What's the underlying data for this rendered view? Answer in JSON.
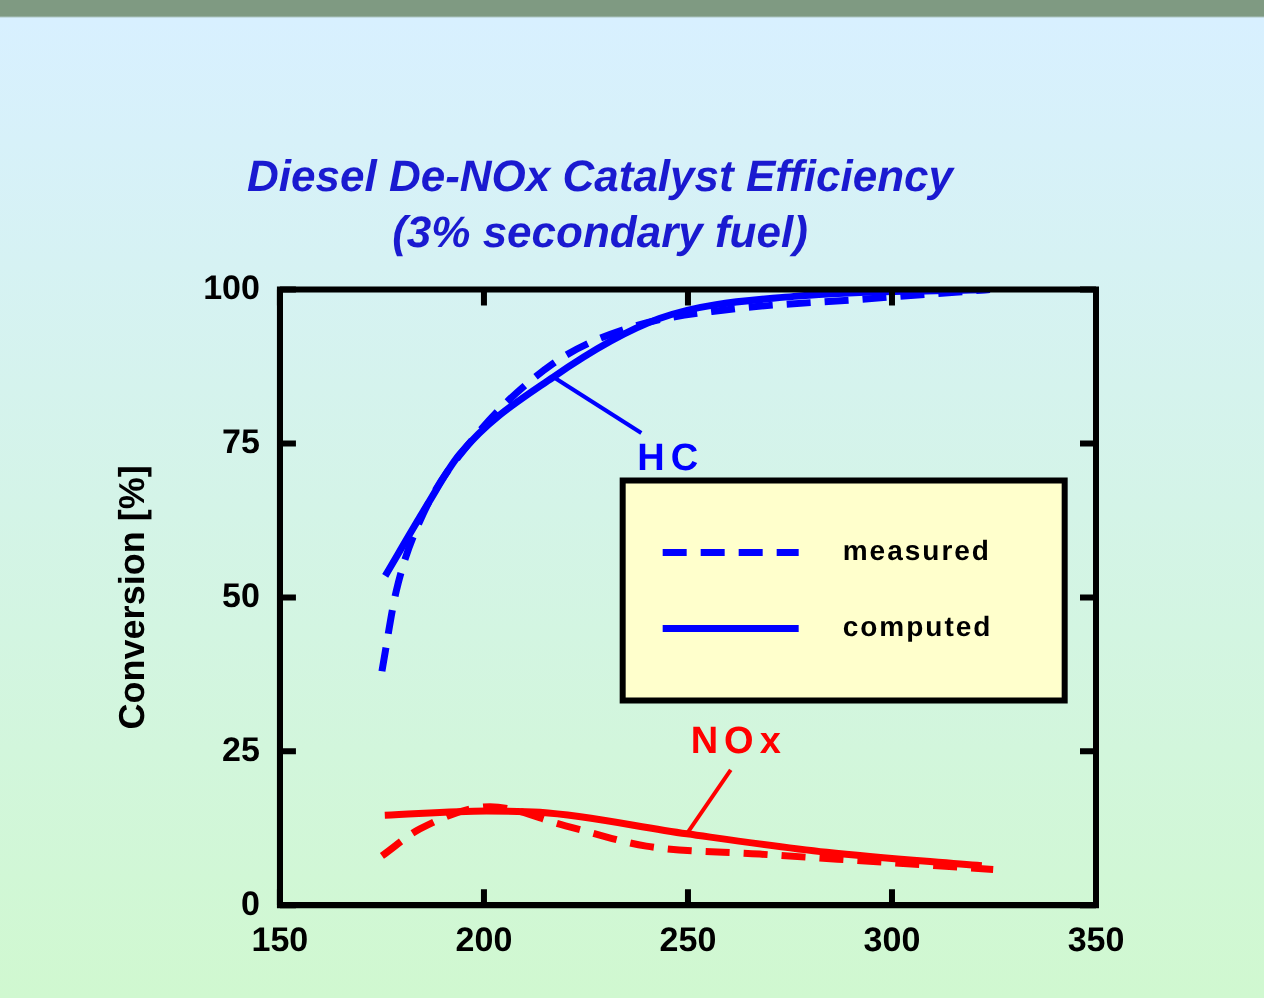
{
  "chart_data": {
    "type": "line",
    "title": "Diesel De-NOx Catalyst Efficiency",
    "subtitle": "(3% secondary fuel)",
    "ylabel": "Conversion [%]",
    "xlim": [
      150,
      350
    ],
    "xticks": [
      150,
      200,
      250,
      300,
      350
    ],
    "ylim": [
      0,
      100
    ],
    "yticks": [
      0,
      25,
      50,
      75,
      100
    ],
    "grid": false,
    "legend": "right",
    "marker": "none",
    "series": [
      {
        "name": "measured",
        "color": "#0000ff",
        "line_style": "dashed",
        "x": [
          175,
          178.5,
          185,
          197,
          217,
          236.6,
          259,
          292,
          324
        ],
        "values": [
          38,
          51,
          63.4,
          75.5,
          88,
          94,
          96.7,
          98.4,
          100
        ]
      },
      {
        "name": "computed",
        "color": "#0000ff",
        "line_style": "solid",
        "x": [
          175.8,
          185.8,
          194,
          217,
          243,
          276,
          324
        ],
        "values": [
          53.5,
          64.7,
          73.2,
          85.8,
          95.3,
          98.9,
          100
        ]
      },
      {
        "color": "#ff0000",
        "line_style": "dashed",
        "x": [
          175,
          184.3,
          201.5,
          220,
          239.8,
          267.6,
          300,
          324.8
        ],
        "values": [
          8,
          12.4,
          16,
          12.9,
          9.6,
          8.3,
          6.9,
          5.8
        ]
      },
      {
        "color": "#ff0000",
        "line_style": "solid",
        "x": [
          175.7,
          200.6,
          213.7,
          249.7,
          284,
          322
        ],
        "values": [
          14.6,
          15.3,
          15.1,
          11.6,
          8.6,
          6.4
        ]
      }
    ],
    "annotations": [
      {
        "text": "HC",
        "x": 217,
        "y": 85.8
      },
      {
        "text": "NOx",
        "x": 249.7,
        "y": 11.6
      }
    ]
  }
}
